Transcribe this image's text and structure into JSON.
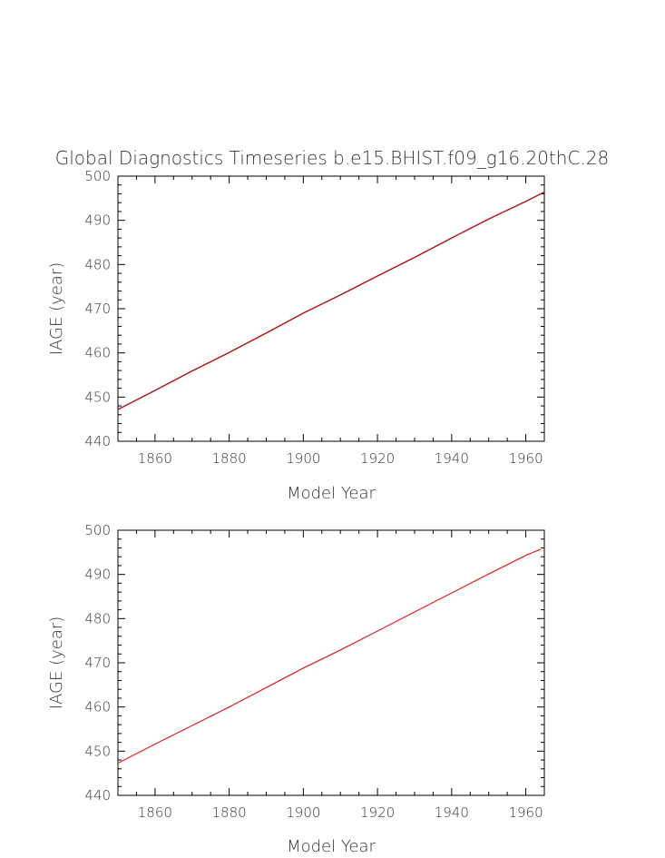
{
  "title": "Global Diagnostics Timeseries b.e15.BHIST.f09_g16.20thC.28",
  "chart_data": [
    {
      "type": "line",
      "xlabel": "Model Year",
      "ylabel": "IAGE (year)",
      "xlim": [
        1850,
        1965
      ],
      "ylim": [
        440,
        500
      ],
      "xticks": [
        1860,
        1880,
        1900,
        1920,
        1940,
        1960
      ],
      "yticks": [
        440,
        450,
        460,
        470,
        480,
        490,
        500
      ],
      "grid": false,
      "series": [
        {
          "color": "#b01010",
          "x": [
            1850,
            1860,
            1870,
            1880,
            1890,
            1900,
            1910,
            1920,
            1930,
            1940,
            1950,
            1960,
            1965
          ],
          "y": [
            447.2,
            451.5,
            455.9,
            460.1,
            464.5,
            469.0,
            473.1,
            477.4,
            481.6,
            486.0,
            490.3,
            494.3,
            496.4
          ]
        }
      ]
    },
    {
      "type": "line",
      "xlabel": "Model Year",
      "ylabel": "IAGE (year)",
      "xlim": [
        1850,
        1965
      ],
      "ylim": [
        440,
        500
      ],
      "xticks": [
        1860,
        1880,
        1900,
        1920,
        1940,
        1960
      ],
      "yticks": [
        440,
        450,
        460,
        470,
        480,
        490,
        500
      ],
      "grid": false,
      "series": [
        {
          "color": "#e02020",
          "x": [
            1850,
            1860,
            1870,
            1880,
            1890,
            1900,
            1910,
            1920,
            1930,
            1940,
            1950,
            1960,
            1964
          ],
          "y": [
            447.3,
            451.6,
            455.8,
            460.0,
            464.4,
            468.8,
            472.9,
            477.2,
            481.5,
            485.8,
            490.1,
            494.3,
            495.7
          ]
        }
      ]
    }
  ]
}
